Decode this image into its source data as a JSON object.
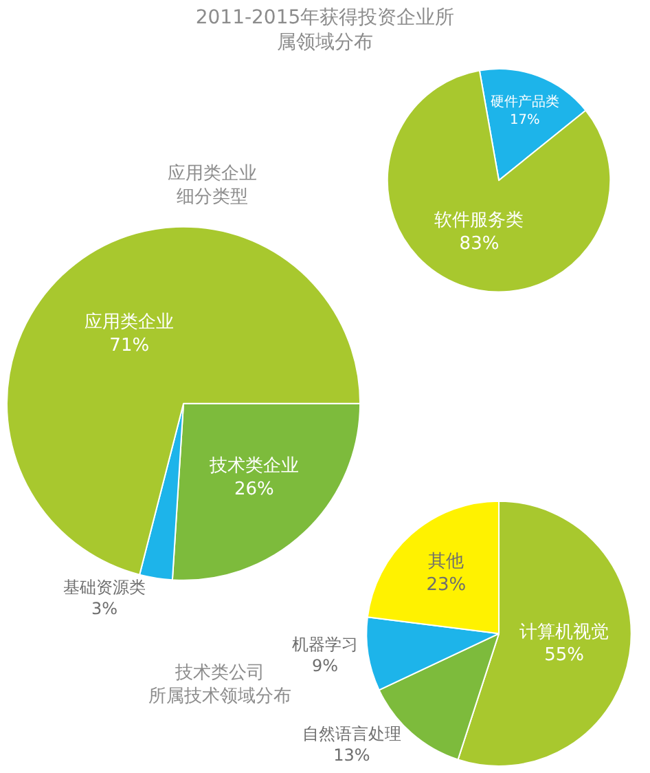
{
  "chart_data": [
    {
      "type": "pie",
      "title": "2011-2015年获得投资企业所属领域分布",
      "categories": [
        "技术类企业",
        "基础资源类",
        "应用类企业"
      ],
      "values": [
        26,
        3,
        71
      ],
      "value_labels": [
        "26%",
        "3%",
        "71%"
      ],
      "colors": [
        "#7dbb3c",
        "#1db4ea",
        "#a8c82e"
      ],
      "legend": false
    },
    {
      "type": "pie",
      "title": "应用类企业细分类型",
      "categories": [
        "硬件产品类",
        "软件服务类"
      ],
      "values": [
        17,
        83
      ],
      "value_labels": [
        "17%",
        "83%"
      ],
      "colors": [
        "#1db4ea",
        "#a8c82e"
      ],
      "legend": false
    },
    {
      "type": "pie",
      "title": "技术类公司所属技术领域分布",
      "categories": [
        "计算机视觉",
        "自然语言处理",
        "机器学习",
        "其他"
      ],
      "values": [
        55,
        13,
        9,
        23
      ],
      "value_labels": [
        "55%",
        "13%",
        "9%",
        "23%"
      ],
      "colors": [
        "#a8c82e",
        "#7dbb3c",
        "#1db4ea",
        "#fff200"
      ],
      "legend": false
    }
  ]
}
